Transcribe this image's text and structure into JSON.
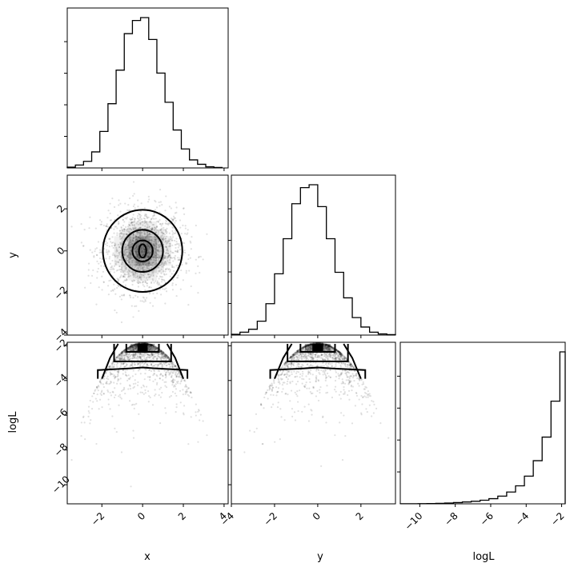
{
  "chart_data": {
    "type": "corner",
    "parameters": [
      "x",
      "y",
      "logL"
    ],
    "axis_labels": {
      "x": "x",
      "y": "y",
      "logL": "logL"
    },
    "ranges": {
      "x": [
        -3.7,
        4.2
      ],
      "y": [
        -4.0,
        3.6
      ],
      "logL": [
        -11.1,
        -1.8
      ]
    },
    "ticks": {
      "x": [
        -2,
        0,
        2,
        4
      ],
      "y": [
        -4,
        -2,
        0,
        2
      ],
      "logL": [
        -10,
        -8,
        -6,
        -4,
        -2
      ]
    },
    "tick_labels": {
      "x": [
        "−2",
        "0",
        "2",
        "4"
      ],
      "y": [
        "−4",
        "−2",
        "0",
        "2"
      ],
      "logL": [
        "−10",
        "−8",
        "−6",
        "−4",
        "−2"
      ]
    },
    "hist_x": {
      "edges": [
        -3.7,
        -3.3,
        -2.9,
        -2.5,
        -2.1,
        -1.7,
        -1.3,
        -0.9,
        -0.5,
        -0.1,
        0.3,
        0.7,
        1.1,
        1.5,
        1.9,
        2.3,
        2.7,
        3.1,
        3.5,
        3.9
      ],
      "counts": [
        5,
        20,
        45,
        110,
        250,
        440,
        670,
        920,
        1010,
        1030,
        880,
        650,
        450,
        260,
        130,
        55,
        25,
        8,
        3
      ]
    },
    "hist_y": {
      "edges": [
        -4.0,
        -3.6,
        -3.2,
        -2.8,
        -2.4,
        -2.0,
        -1.6,
        -1.2,
        -0.8,
        -0.4,
        0.0,
        0.4,
        0.8,
        1.2,
        1.6,
        2.0,
        2.4,
        2.8,
        3.2,
        3.6
      ],
      "counts": [
        5,
        20,
        40,
        95,
        215,
        420,
        660,
        900,
        1010,
        1030,
        880,
        660,
        430,
        255,
        120,
        55,
        20,
        8,
        3
      ]
    },
    "hist_logL": {
      "edges": [
        -11.1,
        -10.6,
        -10.1,
        -9.6,
        -9.1,
        -8.6,
        -8.1,
        -7.6,
        -7.1,
        -6.6,
        -6.1,
        -5.6,
        -5.1,
        -4.6,
        -4.1,
        -3.6,
        -3.1,
        -2.6,
        -2.1,
        -1.8
      ],
      "counts": [
        1,
        1,
        2,
        3,
        5,
        8,
        12,
        18,
        25,
        35,
        50,
        75,
        115,
        175,
        270,
        420,
        650,
        1000,
        1480
      ]
    },
    "contours_xy": [
      {
        "level": 1,
        "cx": 0.0,
        "cy": 0.0,
        "rx": 0.18,
        "ry": 0.32
      },
      {
        "level": 2,
        "cx": 0.0,
        "cy": 0.0,
        "rx": 0.5,
        "ry": 0.5
      },
      {
        "level": 3,
        "cx": 0.0,
        "cy": 0.0,
        "rx": 1.0,
        "ry": 1.0
      },
      {
        "level": 4,
        "cx": 0.0,
        "cy": 0.0,
        "rx": 1.95,
        "ry": 1.95
      }
    ],
    "grid": false,
    "legend": "none"
  }
}
